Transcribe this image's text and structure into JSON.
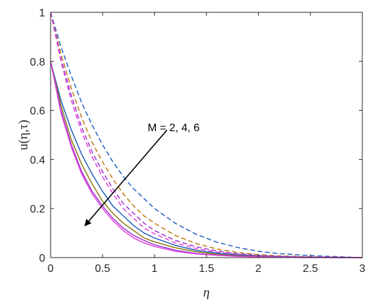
{
  "chart_data": {
    "type": "line",
    "xlabel": "η",
    "ylabel": "u(η,τ)",
    "xlim": [
      0,
      3
    ],
    "ylim": [
      0,
      1
    ],
    "xticks": [
      "0",
      "0.5",
      "1",
      "1.5",
      "2",
      "2.5",
      "3"
    ],
    "yticks": [
      "0",
      "0.2",
      "0.4",
      "0.6",
      "0.8",
      "1"
    ],
    "grid": false,
    "legend": "none",
    "annotation": {
      "text": "M = 2, 4, 6",
      "arrow_from": [
        1.12,
        0.52
      ],
      "arrow_to": [
        0.33,
        0.13
      ]
    },
    "x": [
      0,
      0.1,
      0.2,
      0.3,
      0.4,
      0.5,
      0.6,
      0.7,
      0.8,
      0.9,
      1.0,
      1.2,
      1.4,
      1.6,
      1.8,
      2.0,
      2.2,
      2.5,
      2.8,
      3.0
    ],
    "series": [
      {
        "style": "dashed",
        "color": "#1f5fbf",
        "values": [
          1.0,
          0.86,
          0.74,
          0.63,
          0.54,
          0.46,
          0.39,
          0.33,
          0.28,
          0.24,
          0.2,
          0.14,
          0.095,
          0.063,
          0.041,
          0.026,
          0.016,
          0.008,
          0.003,
          0.0
        ]
      },
      {
        "style": "dashed",
        "color": "#c07a10",
        "values": [
          1.0,
          0.83,
          0.69,
          0.57,
          0.47,
          0.39,
          0.32,
          0.26,
          0.21,
          0.17,
          0.14,
          0.09,
          0.057,
          0.035,
          0.021,
          0.012,
          0.007,
          0.003,
          0.001,
          0.0
        ]
      },
      {
        "style": "dashed",
        "color": "#a030d0",
        "values": [
          1.0,
          0.81,
          0.66,
          0.53,
          0.43,
          0.35,
          0.28,
          0.22,
          0.18,
          0.14,
          0.11,
          0.07,
          0.044,
          0.027,
          0.016,
          0.009,
          0.005,
          0.002,
          0.001,
          0.0
        ]
      },
      {
        "style": "dashed",
        "color": "#e040e0",
        "values": [
          1.0,
          0.8,
          0.64,
          0.51,
          0.41,
          0.33,
          0.26,
          0.2,
          0.16,
          0.12,
          0.097,
          0.06,
          0.037,
          0.022,
          0.013,
          0.008,
          0.004,
          0.002,
          0.001,
          0.0
        ]
      },
      {
        "style": "solid",
        "color": "#1f5fbf",
        "values": [
          0.8,
          0.64,
          0.52,
          0.42,
          0.34,
          0.27,
          0.21,
          0.17,
          0.13,
          0.1,
          0.08,
          0.05,
          0.03,
          0.018,
          0.011,
          0.006,
          0.003,
          0.001,
          0.0,
          0.0
        ]
      },
      {
        "style": "solid",
        "color": "#8a7a10",
        "values": [
          0.8,
          0.62,
          0.48,
          0.38,
          0.3,
          0.23,
          0.18,
          0.14,
          0.11,
          0.08,
          0.064,
          0.04,
          0.024,
          0.014,
          0.008,
          0.005,
          0.002,
          0.001,
          0.0,
          0.0
        ]
      },
      {
        "style": "solid",
        "color": "#a030d0",
        "values": [
          0.8,
          0.6,
          0.46,
          0.35,
          0.27,
          0.21,
          0.16,
          0.12,
          0.09,
          0.07,
          0.052,
          0.03,
          0.017,
          0.01,
          0.006,
          0.003,
          0.002,
          0.001,
          0.0,
          0.0
        ]
      },
      {
        "style": "solid",
        "color": "#e040e0",
        "values": [
          0.8,
          0.59,
          0.45,
          0.34,
          0.26,
          0.2,
          0.15,
          0.11,
          0.08,
          0.06,
          0.045,
          0.026,
          0.015,
          0.009,
          0.005,
          0.003,
          0.001,
          0.0,
          0.0,
          0.0
        ]
      }
    ]
  }
}
